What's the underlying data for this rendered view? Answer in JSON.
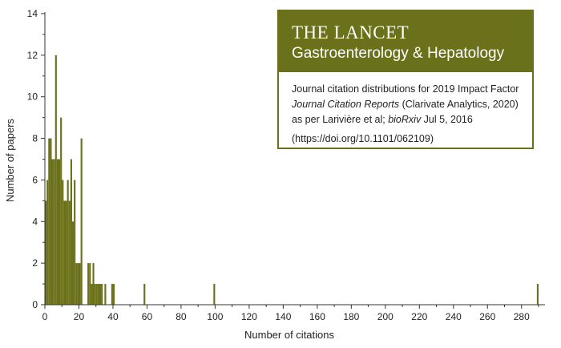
{
  "chart_data": {
    "type": "bar",
    "xlabel": "Number of citations",
    "ylabel": "Number of papers",
    "xlim": [
      0,
      290
    ],
    "ylim": [
      0,
      14
    ],
    "x_ticks": [
      0,
      20,
      40,
      60,
      80,
      100,
      120,
      140,
      160,
      180,
      200,
      220,
      240,
      260,
      280
    ],
    "y_ticks": [
      0,
      2,
      4,
      6,
      8,
      10,
      12,
      14
    ],
    "bar_color": "#6b701a",
    "x": [
      0,
      1,
      2,
      3,
      4,
      5,
      6,
      7,
      8,
      9,
      10,
      11,
      12,
      13,
      14,
      15,
      16,
      17,
      18,
      19,
      20,
      21,
      25,
      26,
      27,
      28,
      29,
      30,
      31,
      32,
      33,
      35,
      39,
      40,
      58,
      99,
      289
    ],
    "values": [
      5,
      6,
      8,
      8,
      7,
      7,
      12,
      7,
      7,
      9,
      6,
      5,
      5,
      6,
      5,
      7,
      4,
      6,
      2,
      2,
      2,
      8,
      2,
      2,
      1,
      2,
      1,
      1,
      1,
      1,
      1,
      1,
      1,
      1,
      1,
      1,
      1
    ],
    "grid": false
  },
  "info_box": {
    "journal": "THE LANCET",
    "subtitle": "Gastroenterology & Hepatology",
    "line1": "Journal citation distributions for 2019 Impact Factor",
    "line2_italic": "Journal Citation Reports",
    "line2_rest": " (Clarivate Analytics, 2020)",
    "line3_pre": "as per Larivière et al; ",
    "line3_italic": "bioRxiv",
    "line3_post": " Jul 5, 2016",
    "line4": "(https://doi.org/10.1101/062109)",
    "brand_color": "#6b701a"
  }
}
